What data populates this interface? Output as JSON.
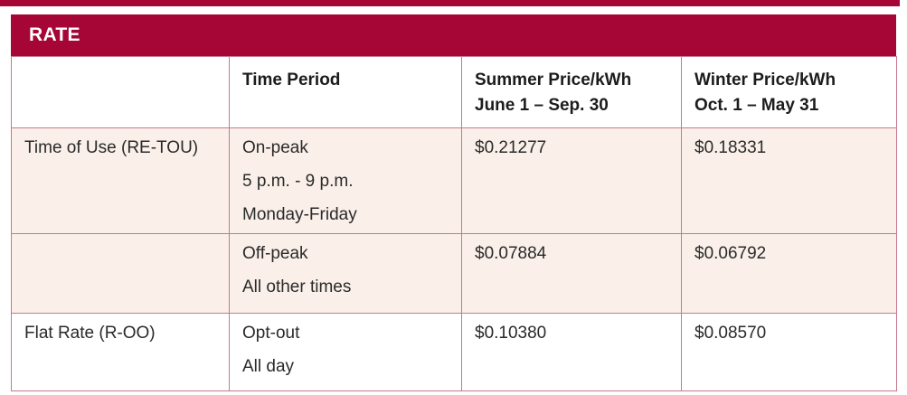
{
  "colors": {
    "accent": "#a50636",
    "row_shaded_bg": "#faf0e9",
    "border": "#c5798f"
  },
  "table": {
    "title": "RATE",
    "headers": {
      "rate": "",
      "time_period": "Time Period",
      "summer": [
        "Summer Price/kWh",
        "June 1 – Sep. 30"
      ],
      "winter": [
        "Winter Price/kWh",
        "Oct. 1 – May 31"
      ]
    },
    "rows": [
      {
        "rate": "Time of Use (RE-TOU)",
        "time_period": [
          "On-peak",
          "5 p.m. - 9 p.m.",
          "Monday-Friday"
        ],
        "summer_price": "$0.21277",
        "winter_price": "$0.18331"
      },
      {
        "rate": "",
        "time_period": [
          "Off-peak",
          "All other times"
        ],
        "summer_price": "$0.07884",
        "winter_price": "$0.06792"
      },
      {
        "rate": "Flat Rate (R-OO)",
        "time_period": [
          "Opt-out",
          "All day"
        ],
        "summer_price": "$0.10380",
        "winter_price": "$0.08570"
      }
    ]
  }
}
